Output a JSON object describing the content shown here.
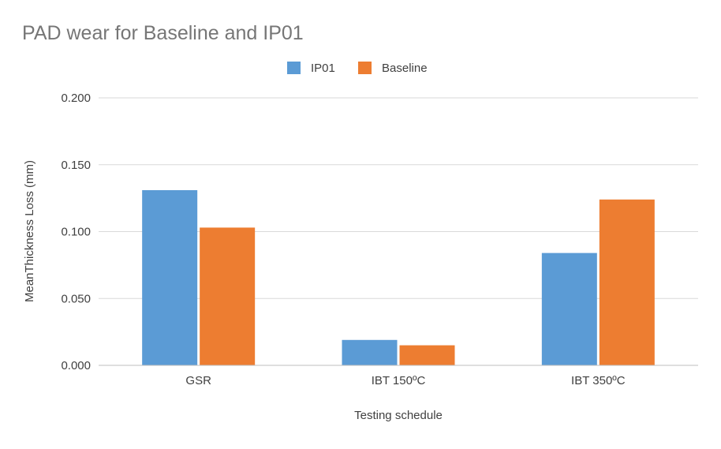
{
  "chart_data": {
    "type": "bar",
    "title": "PAD wear for Baseline and IP01",
    "xlabel": "Testing schedule",
    "ylabel": "MeanThickness Loss (mm)",
    "categories": [
      "GSR",
      "IBT 150ºC",
      "IBT 350ºC"
    ],
    "series": [
      {
        "name": "IP01",
        "color": "#5B9BD5",
        "values": [
          0.131,
          0.019,
          0.084
        ]
      },
      {
        "name": "Baseline",
        "color": "#ED7D31",
        "values": [
          0.103,
          0.015,
          0.124
        ]
      }
    ],
    "ylim": [
      0,
      0.2
    ],
    "yticks": [
      0,
      0.05,
      0.1,
      0.15,
      0.2
    ],
    "ytick_labels": [
      "0.000",
      "0.050",
      "0.100",
      "0.150",
      "0.200"
    ],
    "grid": true,
    "legend_position": "top-center"
  }
}
